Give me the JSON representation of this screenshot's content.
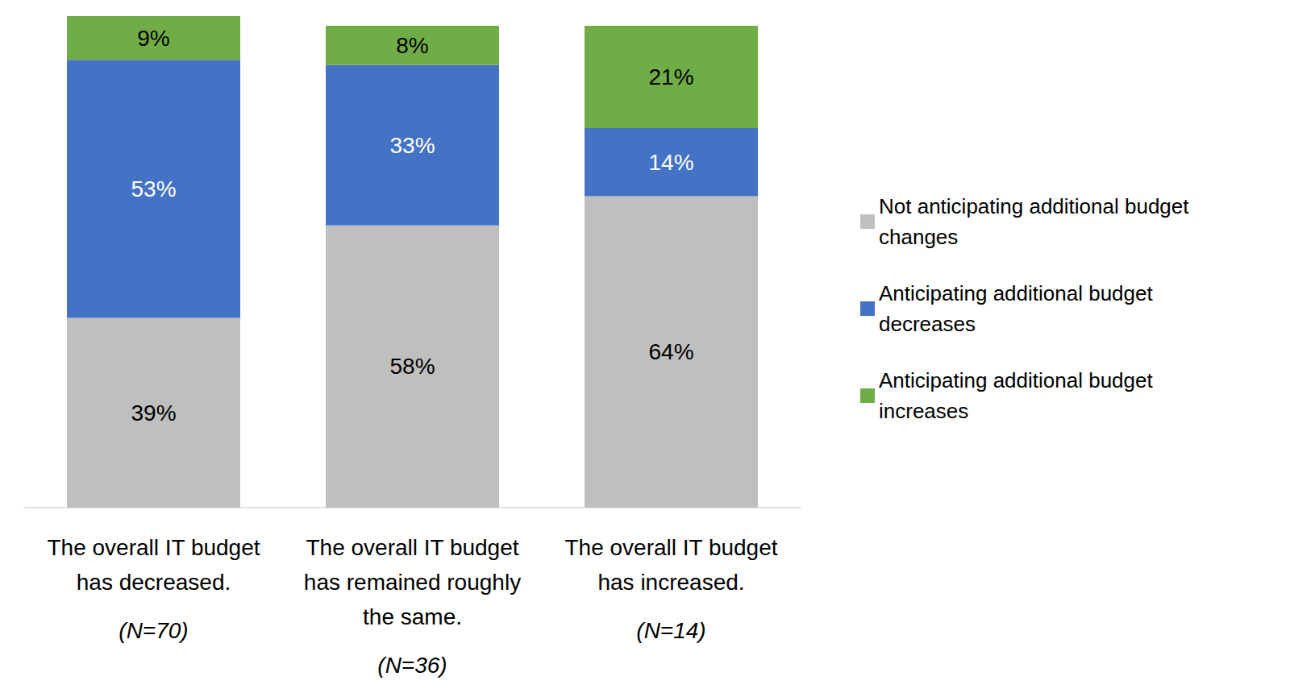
{
  "chart_data": {
    "type": "bar",
    "stacked": true,
    "data_labels": true,
    "tick_labels": "x",
    "grid": false,
    "legend": "right",
    "categories": [
      "The overall IT budget has decreased.\n(N=70)",
      "The overall IT budget has remained roughly the same.\n(N=36)",
      "The overall IT budget has increased.\n(N=14)"
    ],
    "ylim": [
      0,
      101
    ],
    "series": [
      {
        "name": "Not anticipating additional budget changes",
        "color": "#bfbfbf",
        "values": [
          39,
          58,
          64
        ],
        "value_labels": [
          "39%",
          "58%",
          "64%"
        ]
      },
      {
        "name": "Anticipating additional budget decreases",
        "color": "#4472c4",
        "values": [
          53,
          33,
          14
        ],
        "value_labels": [
          "53%",
          "33%",
          "14%"
        ]
      },
      {
        "name": "Anticipating additional budget increases",
        "color": "#70ad47",
        "values": [
          9,
          8,
          21
        ],
        "value_labels": [
          "9%",
          "8%",
          "21%"
        ]
      }
    ]
  }
}
